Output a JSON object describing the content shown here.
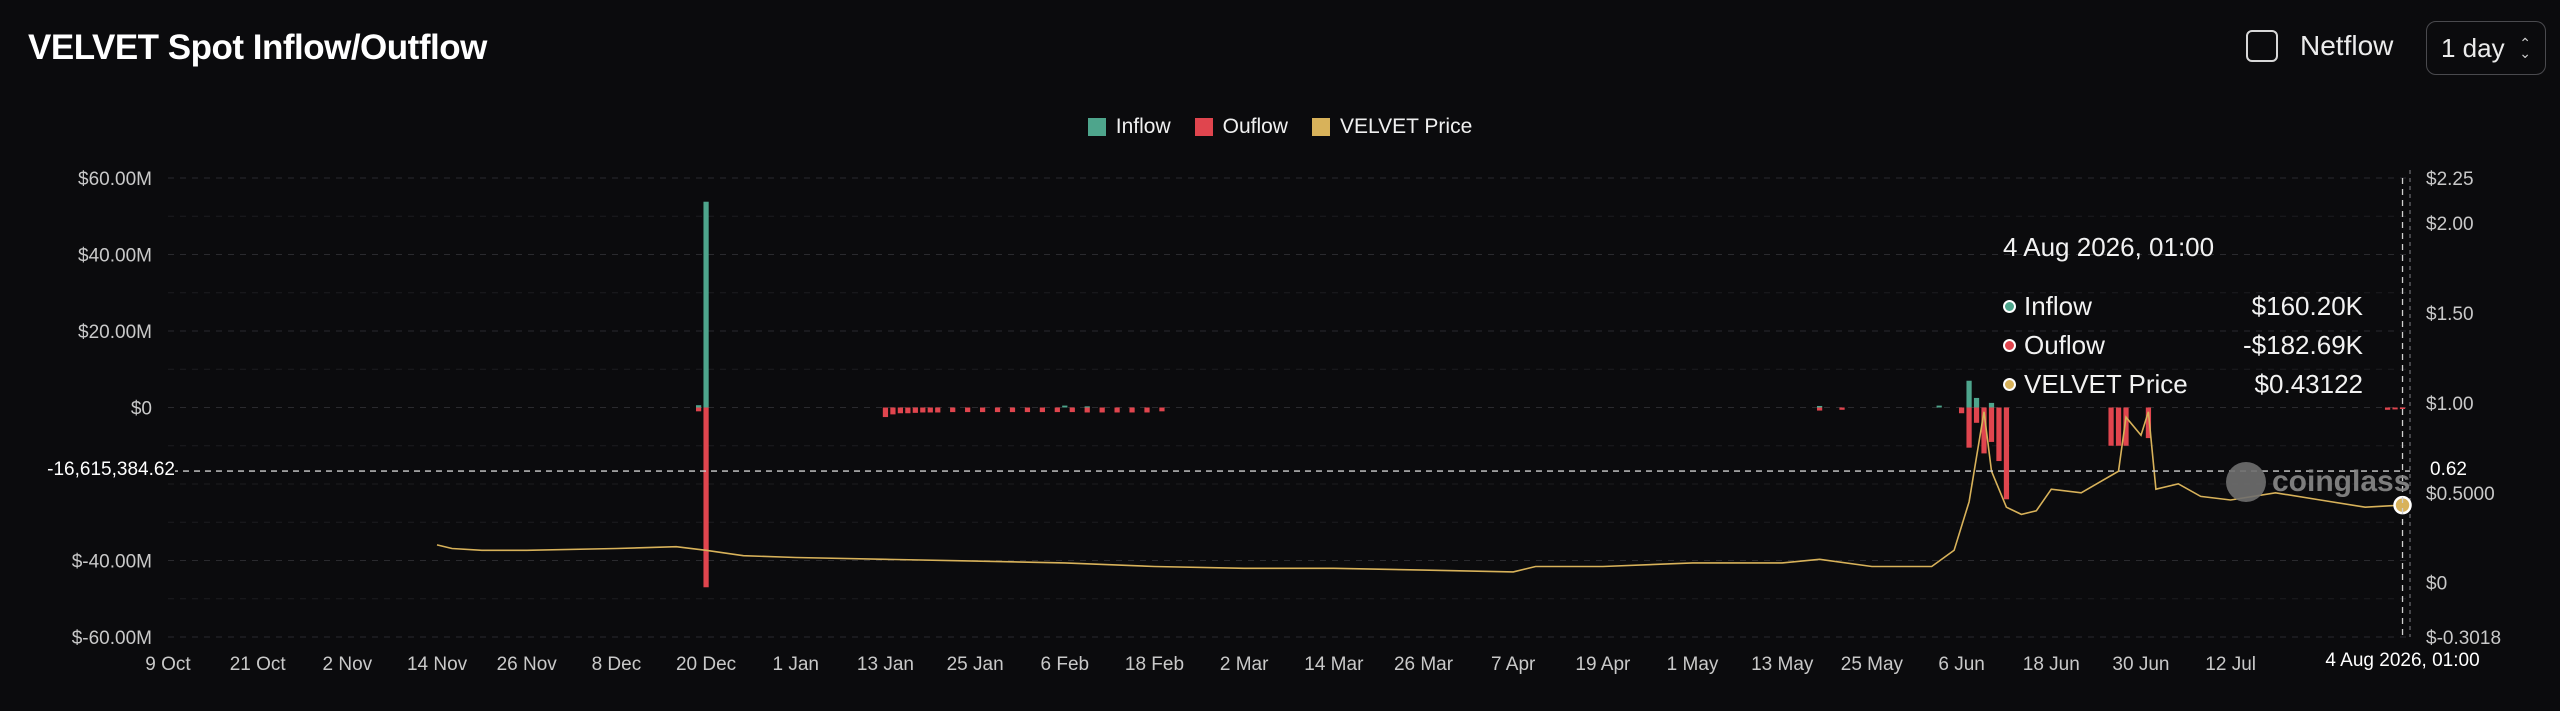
{
  "header": {
    "title": "VELVET Spot Inflow/Outflow",
    "netflow_label": "Netflow",
    "netflow_checked": false,
    "interval": "1 day"
  },
  "legend": [
    {
      "label": "Inflow",
      "color": "#4ea58c"
    },
    {
      "label": "Ouflow",
      "color": "#e0454e"
    },
    {
      "label": "VELVET Price",
      "color": "#d8b25a"
    }
  ],
  "tooltip": {
    "date": "4 Aug 2026, 01:00",
    "rows": [
      {
        "label": "Inflow",
        "value": "$160.20K",
        "color": "#4ea58c"
      },
      {
        "label": "Ouflow",
        "value": "-$182.69K",
        "color": "#e0454e"
      },
      {
        "label": "VELVET Price",
        "value": "$0.43122",
        "color": "#d8b25a"
      }
    ]
  },
  "crosshair": {
    "left_value": "-16,615,384.62",
    "right_value": "0.62",
    "x_value": "4 Aug 2026, 01:00"
  },
  "watermark": "coinglass",
  "chart_data": {
    "type": "bar",
    "title": "VELVET Spot Inflow/Outflow",
    "x_ticks": [
      "9 Oct",
      "21 Oct",
      "2 Nov",
      "14 Nov",
      "26 Nov",
      "8 Dec",
      "20 Dec",
      "1 Jan",
      "13 Jan",
      "25 Jan",
      "6 Feb",
      "18 Feb",
      "2 Mar",
      "14 Mar",
      "26 Mar",
      "7 Apr",
      "19 Apr",
      "1 May",
      "13 May",
      "25 May",
      "6 Jun",
      "18 Jun",
      "30 Jun",
      "12 Jul",
      "4 Aug 2026, 01:00"
    ],
    "y_left": {
      "ticks": [
        "$60.00M",
        "$40.00M",
        "$20.00M",
        "$0",
        "$-40.00M",
        "$-60.00M"
      ],
      "tick_values": [
        60,
        40,
        20,
        0,
        -40,
        -60
      ],
      "range": [
        -60,
        60
      ],
      "unit": "M USD"
    },
    "y_right": {
      "ticks": [
        "$2.25",
        "$2.00",
        "$1.50",
        "$1.00",
        "$0.5000",
        "$0",
        "$-0.3018"
      ],
      "tick_values": [
        2.25,
        2.0,
        1.5,
        1.0,
        0.5,
        0,
        -0.3018
      ],
      "range": [
        -0.3018,
        2.25
      ]
    },
    "series": [
      {
        "name": "Inflow",
        "type": "bar",
        "points": [
          [
            "20 Dec",
            53.8
          ],
          [
            "19 Dec",
            0.6
          ],
          [
            "6 Feb",
            0.5
          ],
          [
            "9 Feb",
            0.3
          ],
          [
            "18 May",
            0.4
          ],
          [
            "3 Jun",
            0.5
          ],
          [
            "7 Jun",
            7.0
          ],
          [
            "8 Jun",
            2.5
          ],
          [
            "10 Jun",
            1.2
          ]
        ]
      },
      {
        "name": "Ouflow",
        "type": "bar",
        "points": [
          [
            "20 Dec",
            -47.0
          ],
          [
            "19 Dec",
            -1.0
          ],
          [
            "13 Jan",
            -2.5
          ],
          [
            "14 Jan",
            -1.8
          ],
          [
            "15 Jan",
            -1.5
          ],
          [
            "16 Jan",
            -1.5
          ],
          [
            "17 Jan",
            -1.4
          ],
          [
            "18 Jan",
            -1.3
          ],
          [
            "19 Jan",
            -1.3
          ],
          [
            "20 Jan",
            -1.3
          ],
          [
            "22 Jan",
            -1.2
          ],
          [
            "24 Jan",
            -1.2
          ],
          [
            "26 Jan",
            -1.2
          ],
          [
            "28 Jan",
            -1.2
          ],
          [
            "30 Jan",
            -1.2
          ],
          [
            "1 Feb",
            -1.2
          ],
          [
            "3 Feb",
            -1.2
          ],
          [
            "5 Feb",
            -1.2
          ],
          [
            "7 Feb",
            -1.2
          ],
          [
            "9 Feb",
            -1.3
          ],
          [
            "11 Feb",
            -1.3
          ],
          [
            "13 Feb",
            -1.3
          ],
          [
            "15 Feb",
            -1.3
          ],
          [
            "17 Feb",
            -1.3
          ],
          [
            "19 Feb",
            -1.0
          ],
          [
            "18 May",
            -0.8
          ],
          [
            "21 May",
            -0.6
          ],
          [
            "6 Jun",
            -1.5
          ],
          [
            "7 Jun",
            -10.5
          ],
          [
            "8 Jun",
            -4.0
          ],
          [
            "9 Jun",
            -12.0
          ],
          [
            "10 Jun",
            -9.0
          ],
          [
            "11 Jun",
            -14.0
          ],
          [
            "12 Jun",
            -24.0
          ],
          [
            "26 Jun",
            -10.0
          ],
          [
            "27 Jun",
            -10.0
          ],
          [
            "28 Jun",
            -10.0
          ],
          [
            "1 Jul",
            -8.0
          ],
          [
            "2 Aug",
            -0.6
          ],
          [
            "3 Aug",
            -0.5
          ],
          [
            "4 Aug",
            -0.18
          ]
        ]
      },
      {
        "name": "VELVET Price",
        "type": "line",
        "points": [
          [
            "14 Nov",
            0.21
          ],
          [
            "16 Nov",
            0.19
          ],
          [
            "20 Nov",
            0.18
          ],
          [
            "26 Nov",
            0.18
          ],
          [
            "8 Dec",
            0.19
          ],
          [
            "16 Dec",
            0.2
          ],
          [
            "20 Dec",
            0.18
          ],
          [
            "25 Dec",
            0.15
          ],
          [
            "1 Jan",
            0.14
          ],
          [
            "13 Jan",
            0.13
          ],
          [
            "25 Jan",
            0.12
          ],
          [
            "6 Feb",
            0.11
          ],
          [
            "18 Feb",
            0.09
          ],
          [
            "2 Mar",
            0.08
          ],
          [
            "14 Mar",
            0.08
          ],
          [
            "26 Mar",
            0.07
          ],
          [
            "7 Apr",
            0.06
          ],
          [
            "10 Apr",
            0.09
          ],
          [
            "19 Apr",
            0.09
          ],
          [
            "1 May",
            0.11
          ],
          [
            "13 May",
            0.11
          ],
          [
            "18 May",
            0.13
          ],
          [
            "25 May",
            0.09
          ],
          [
            "2 Jun",
            0.09
          ],
          [
            "5 Jun",
            0.18
          ],
          [
            "7 Jun",
            0.45
          ],
          [
            "9 Jun",
            0.95
          ],
          [
            "10 Jun",
            0.62
          ],
          [
            "12 Jun",
            0.42
          ],
          [
            "14 Jun",
            0.38
          ],
          [
            "16 Jun",
            0.4
          ],
          [
            "18 Jun",
            0.52
          ],
          [
            "22 Jun",
            0.5
          ],
          [
            "27 Jun",
            0.62
          ],
          [
            "28 Jun",
            0.92
          ],
          [
            "30 Jun",
            0.82
          ],
          [
            "1 Jul",
            0.95
          ],
          [
            "2 Jul",
            0.52
          ],
          [
            "5 Jul",
            0.55
          ],
          [
            "8 Jul",
            0.48
          ],
          [
            "12 Jul",
            0.46
          ],
          [
            "18 Jul",
            0.5
          ],
          [
            "24 Jul",
            0.46
          ],
          [
            "30 Jul",
            0.42
          ],
          [
            "4 Aug",
            0.43122
          ]
        ]
      }
    ],
    "grid": true,
    "legend_position": "top-center"
  }
}
